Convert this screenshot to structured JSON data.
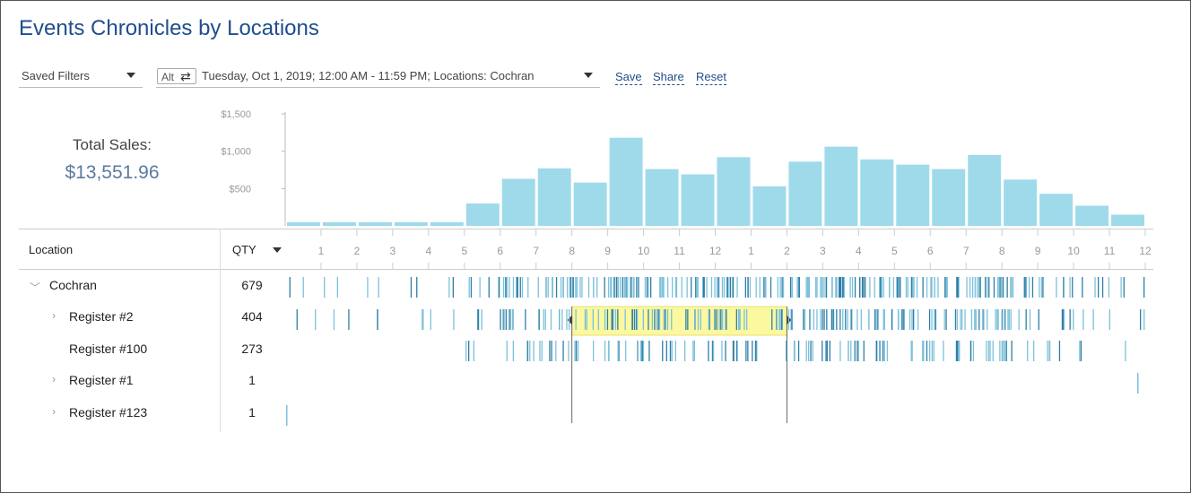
{
  "title": "Events Chronicles by Locations",
  "saved_filters": {
    "label": "Saved Filters"
  },
  "filter": {
    "alt_label": "Alt",
    "swap_icon": "⇄",
    "text": "Tuesday, Oct 1, 2019; 12:00 AM - 11:59 PM; Locations: Cochran"
  },
  "actions": {
    "save": "Save",
    "share": "Share",
    "reset": "Reset"
  },
  "total": {
    "label": "Total Sales:",
    "value": "$13,551.96"
  },
  "table": {
    "headers": {
      "location": "Location",
      "qty": "QTY"
    },
    "rows": [
      {
        "label": "Cochran",
        "qty": "679",
        "expander": "expanded"
      },
      {
        "label": "Register #2",
        "qty": "404",
        "expander": "collapsed"
      },
      {
        "label": "Register #100",
        "qty": "273",
        "expander": "none"
      },
      {
        "label": "Register #1",
        "qty": "1",
        "expander": "collapsed"
      },
      {
        "label": "Register #123",
        "qty": "1",
        "expander": "collapsed"
      }
    ]
  },
  "colors": {
    "bar": "#9fdaeb",
    "event_light": "#7ec1da",
    "event_dark": "#2f7fa8",
    "selection": "#fbf8a0",
    "title": "#1f4e8c"
  },
  "selection_range": {
    "start_hour": 8,
    "end_hour": 14
  },
  "chart_data": {
    "type": "bar",
    "title": "",
    "xlabel": "",
    "ylabel": "",
    "ylim": [
      0,
      1500
    ],
    "yticks": [
      {
        "value": 500,
        "label": "$500"
      },
      {
        "value": 1000,
        "label": "$1,000"
      },
      {
        "value": 1500,
        "label": "$1,500"
      }
    ],
    "xtick_labels": [
      "1",
      "2",
      "3",
      "4",
      "5",
      "6",
      "7",
      "8",
      "9",
      "10",
      "11",
      "12",
      "1",
      "2",
      "3",
      "4",
      "5",
      "6",
      "7",
      "8",
      "9",
      "10",
      "11",
      "12"
    ],
    "hourly_sales": [
      50,
      50,
      50,
      50,
      50,
      300,
      630,
      770,
      580,
      1180,
      760,
      690,
      920,
      530,
      860,
      1060,
      890,
      820,
      760,
      950,
      620,
      430,
      270,
      150
    ]
  }
}
